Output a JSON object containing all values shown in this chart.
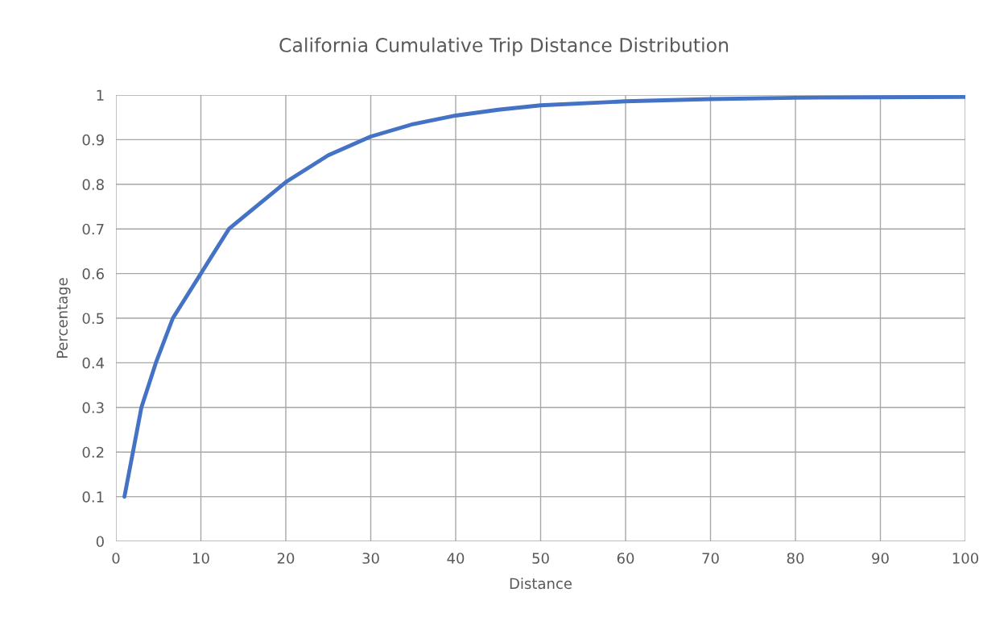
{
  "chart_data": {
    "type": "line",
    "title": "California Cumulative Trip Distance Distribution",
    "xlabel": "Distance",
    "ylabel": "Percentage",
    "x": [
      1,
      2,
      3,
      4.7,
      6.7,
      10,
      13.3,
      20,
      25,
      30,
      35,
      40,
      45,
      50,
      60,
      70,
      80,
      90,
      100
    ],
    "series": [
      {
        "color": "#4472c4",
        "values": [
          0.1,
          0.2,
          0.3,
          0.4,
          0.5,
          0.6,
          0.7,
          0.805,
          0.865,
          0.907,
          0.935,
          0.954,
          0.967,
          0.977,
          0.986,
          0.991,
          0.994,
          0.995,
          0.996
        ]
      }
    ],
    "xlim": [
      0,
      100
    ],
    "xticks": [
      0,
      10,
      20,
      30,
      40,
      50,
      60,
      70,
      80,
      90,
      100
    ],
    "ylim": [
      0,
      1
    ],
    "yticks": [
      0,
      0.1,
      0.2,
      0.3,
      0.4,
      0.5,
      0.6,
      0.7,
      0.8,
      0.9,
      1
    ],
    "grid": true,
    "legend": false,
    "marker": "none",
    "line_style": "solid"
  }
}
